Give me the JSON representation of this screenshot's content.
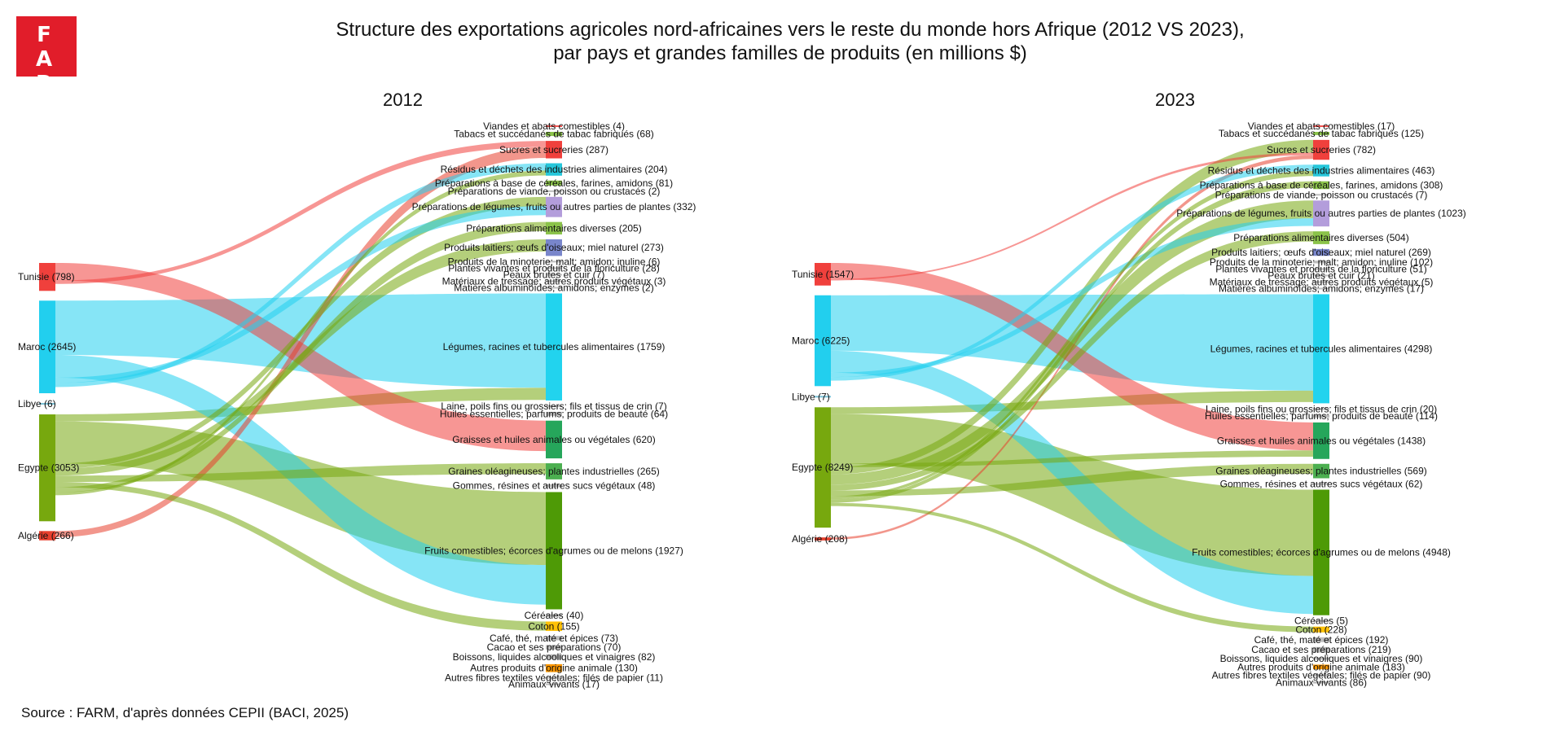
{
  "logo": {
    "line1": "F A",
    "line2": "R M"
  },
  "title": {
    "line1": "Structure des exportations agricoles nord-africaines vers le reste du monde hors Afrique (2012 VS 2023),",
    "line2": "par pays et grandes familles de produits (en millions $)"
  },
  "source": "Source : FARM, d'après données CEPII (BACI, 2025)",
  "colors": {
    "Tunisie": "#f0403c",
    "Maroc": "#22cfee",
    "Libye": "#7ac0d6",
    "Egypte": "#77a80e",
    "Algérie": "#e8402e"
  },
  "chart_data": [
    {
      "type": "sankey",
      "title": "2012",
      "sources": [
        {
          "name": "Tunisie",
          "value": 798,
          "label": "Tunisie (798)"
        },
        {
          "name": "Maroc",
          "value": 2645,
          "label": "Maroc (2645)"
        },
        {
          "name": "Libye",
          "value": 6,
          "label": "Libye (6)"
        },
        {
          "name": "Egypte",
          "value": 3053,
          "label": "Egypte (3053)"
        },
        {
          "name": "Algérie",
          "value": 266,
          "label": "Algérie (266)"
        }
      ],
      "targets": [
        {
          "name": "Viandes et abats comestibles",
          "value": 4,
          "label": "Viandes et abats comestibles (4)",
          "color": "#ef5350"
        },
        {
          "name": "Tabacs et succédanés de tabac fabriqués",
          "value": 68,
          "label": "Tabacs et succédanés de tabac fabriqués (68)",
          "color": "#8bc34a"
        },
        {
          "name": "Sucres et sucreries",
          "value": 287,
          "label": "Sucres et sucreries (287)",
          "color": "#f0403c"
        },
        {
          "name": "Résidus et déchets des industries alimentaires",
          "value": 204,
          "label": "Résidus et déchets des industries alimentaires (204)",
          "color": "#26c6da"
        },
        {
          "name": "Préparations à base de céréales, farines, amidons",
          "value": 81,
          "label": "Préparations à base de céréales, farines, amidons (81)",
          "color": "#8bc34a"
        },
        {
          "name": "Préparations de viande, poisson ou crustacés",
          "value": 2,
          "label": "Préparations de viande, poisson ou crustacés (2)",
          "color": "#bdbdbd"
        },
        {
          "name": "Préparations de légumes, fruits ou autres parties de plantes",
          "value": 332,
          "label": "Préparations de légumes, fruits ou autres parties de plantes (332)",
          "color": "#b39ddb"
        },
        {
          "name": "Préparations alimentaires diverses",
          "value": 205,
          "label": "Préparations alimentaires diverses (205)",
          "color": "#8bc34a"
        },
        {
          "name": "Produits laitiers; œufs d'oiseaux; miel naturel",
          "value": 273,
          "label": "Produits laitiers; œufs d'oiseaux; miel naturel (273)",
          "color": "#7986cb"
        },
        {
          "name": "Produits de la minoterie; malt; amidon; inuline",
          "value": 6,
          "label": "Produits de la minoterie; malt; amidon; inuline (6)",
          "color": "#bdbdbd"
        },
        {
          "name": "Plantes vivantes et produits de la floriculture",
          "value": 28,
          "label": "Plantes vivantes et produits de la floriculture (28)",
          "color": "#bdbdbd"
        },
        {
          "name": "Peaux brutes et cuir",
          "value": 7,
          "label": "Peaux brutes et cuir (7)",
          "color": "#bdbdbd"
        },
        {
          "name": "Matériaux de tressage; autres produits végétaux",
          "value": 3,
          "label": "Matériaux de tressage; autres produits végétaux (3)",
          "color": "#bdbdbd"
        },
        {
          "name": "Matières albuminoïdes; amidons; enzymes",
          "value": 2,
          "label": "Matières albuminoïdes; amidons; enzymes (2)",
          "color": "#bdbdbd"
        },
        {
          "name": "Légumes, racines et tubercules alimentaires",
          "value": 1759,
          "label": "Légumes, racines et tubercules alimentaires (1759)",
          "color": "#22d3ee"
        },
        {
          "name": "Laine, poils fins ou grossiers; fils et tissus de crin",
          "value": 7,
          "label": "Laine, poils fins ou grossiers; fils et tissus de crin (7)",
          "color": "#bdbdbd"
        },
        {
          "name": "Huiles essentielles; parfums; produits de beauté",
          "value": 64,
          "label": "Huiles essentielles; parfums; produits de beauté (64)",
          "color": "#bdbdbd"
        },
        {
          "name": "Graisses et huiles animales ou végétales",
          "value": 620,
          "label": "Graisses et huiles animales ou végétales (620)",
          "color": "#26a65b"
        },
        {
          "name": "Graines oléagineuses; plantes industrielles",
          "value": 265,
          "label": "Graines oléagineuses; plantes industrielles (265)",
          "color": "#4caf50"
        },
        {
          "name": "Gommes, résines et autres sucs végétaux",
          "value": 48,
          "label": "Gommes, résines et autres sucs végétaux (48)",
          "color": "#bdbdbd"
        },
        {
          "name": "Fruits comestibles; écorces d'agrumes ou de melons",
          "value": 1927,
          "label": "Fruits comestibles; écorces d'agrumes ou de melons (1927)",
          "color": "#4e9a06"
        },
        {
          "name": "Céréales",
          "value": 40,
          "label": "Céréales (40)",
          "color": "#bdbdbd"
        },
        {
          "name": "Coton",
          "value": 155,
          "label": "Coton (155)",
          "color": "#ffc107"
        },
        {
          "name": "Café, thé, maté et épices",
          "value": 73,
          "label": "Café, thé, maté et épices (73)",
          "color": "#bdbdbd"
        },
        {
          "name": "Cacao et ses préparations",
          "value": 70,
          "label": "Cacao et ses préparations (70)",
          "color": "#bdbdbd"
        },
        {
          "name": "Boissons, liquides alcooliques et vinaigres",
          "value": 82,
          "label": "Boissons, liquides alcooliques et vinaigres (82)",
          "color": "#bdbdbd"
        },
        {
          "name": "Autres produits d'origine animale",
          "value": 130,
          "label": "Autres produits d'origine animale (130)",
          "color": "#ff9800"
        },
        {
          "name": "Autres fibres textiles végétales; filés de papier",
          "value": 11,
          "label": "Autres fibres textiles végétales; filés de papier (11)",
          "color": "#bdbdbd"
        },
        {
          "name": "Animaux vivants",
          "value": 17,
          "label": "Animaux vivants (17)",
          "color": "#bdbdbd"
        }
      ],
      "links": [
        {
          "source": "Maroc",
          "target": "Légumes, racines et tubercules alimentaires",
          "value": 1550
        },
        {
          "source": "Egypte",
          "target": "Légumes, racines et tubercules alimentaires",
          "value": 200
        },
        {
          "source": "Egypte",
          "target": "Fruits comestibles; écorces d'agrumes ou de melons",
          "value": 1200
        },
        {
          "source": "Maroc",
          "target": "Fruits comestibles; écorces d'agrumes ou de melons",
          "value": 650
        },
        {
          "source": "Tunisie",
          "target": "Graisses et huiles animales ou végétales",
          "value": 500
        },
        {
          "source": "Tunisie",
          "target": "Sucres et sucreries",
          "value": 100
        },
        {
          "source": "Algérie",
          "target": "Sucres et sucreries",
          "value": 180
        },
        {
          "source": "Egypte",
          "target": "Préparations de légumes, fruits ou autres parties de plantes",
          "value": 150
        },
        {
          "source": "Maroc",
          "target": "Préparations de légumes, fruits ou autres parties de plantes",
          "value": 150
        },
        {
          "source": "Egypte",
          "target": "Produits laitiers; œufs d'oiseaux; miel naturel",
          "value": 200
        },
        {
          "source": "Egypte",
          "target": "Graines oléagineuses; plantes industrielles",
          "value": 180
        },
        {
          "source": "Egypte",
          "target": "Coton",
          "value": 150
        },
        {
          "source": "Egypte",
          "target": "Préparations alimentaires diverses",
          "value": 150
        },
        {
          "source": "Maroc",
          "target": "Résidus et déchets des industries alimentaires",
          "value": 120
        },
        {
          "source": "Egypte",
          "target": "Résidus et déchets des industries alimentaires",
          "value": 80
        }
      ]
    },
    {
      "type": "sankey",
      "title": "2023",
      "sources": [
        {
          "name": "Tunisie",
          "value": 1547,
          "label": "Tunisie (1547)"
        },
        {
          "name": "Maroc",
          "value": 6225,
          "label": "Maroc (6225)"
        },
        {
          "name": "Libye",
          "value": 7,
          "label": "Libye (7)"
        },
        {
          "name": "Egypte",
          "value": 8249,
          "label": "Egypte (8249)"
        },
        {
          "name": "Algérie",
          "value": 208,
          "label": "Algérie (208)"
        }
      ],
      "targets": [
        {
          "name": "Viandes et abats comestibles",
          "value": 17,
          "label": "Viandes et abats comestibles (17)",
          "color": "#ef5350"
        },
        {
          "name": "Tabacs et succédanés de tabac fabriqués",
          "value": 125,
          "label": "Tabacs et succédanés de tabac fabriqués (125)",
          "color": "#8bc34a"
        },
        {
          "name": "Sucres et sucreries",
          "value": 782,
          "label": "Sucres et sucreries (782)",
          "color": "#f0403c"
        },
        {
          "name": "Résidus et déchets des industries alimentaires",
          "value": 463,
          "label": "Résidus et déchets des industries alimentaires (463)",
          "color": "#26c6da"
        },
        {
          "name": "Préparations à base de céréales, farines, amidons",
          "value": 308,
          "label": "Préparations à base de céréales, farines, amidons (308)",
          "color": "#8bc34a"
        },
        {
          "name": "Préparations de viande, poisson ou crustacés",
          "value": 7,
          "label": "Préparations de viande, poisson ou crustacés (7)",
          "color": "#bdbdbd"
        },
        {
          "name": "Préparations de légumes, fruits ou autres parties de plantes",
          "value": 1023,
          "label": "Préparations de légumes, fruits ou autres parties de plantes (1023)",
          "color": "#b39ddb"
        },
        {
          "name": "Préparations alimentaires diverses",
          "value": 504,
          "label": "Préparations alimentaires diverses (504)",
          "color": "#8bc34a"
        },
        {
          "name": "Produits laitiers; œufs d'oiseaux; miel naturel",
          "value": 269,
          "label": "Produits laitiers; œufs d'oiseaux; miel naturel (269)",
          "color": "#7986cb"
        },
        {
          "name": "Produits de la minoterie; malt; amidon; inuline",
          "value": 102,
          "label": "Produits de la minoterie; malt; amidon; inuline (102)",
          "color": "#bdbdbd"
        },
        {
          "name": "Plantes vivantes et produits de la floriculture",
          "value": 51,
          "label": "Plantes vivantes et produits de la floriculture (51)",
          "color": "#bdbdbd"
        },
        {
          "name": "Peaux brutes et cuir",
          "value": 21,
          "label": "Peaux brutes et cuir (21)",
          "color": "#bdbdbd"
        },
        {
          "name": "Matériaux de tressage; autres produits végétaux",
          "value": 5,
          "label": "Matériaux de tressage; autres produits végétaux (5)",
          "color": "#bdbdbd"
        },
        {
          "name": "Matières albuminoïdes; amidons; enzymes",
          "value": 17,
          "label": "Matières albuminoïdes; amidons; enzymes (17)",
          "color": "#bdbdbd"
        },
        {
          "name": "Légumes, racines et tubercules alimentaires",
          "value": 4298,
          "label": "Légumes, racines et tubercules alimentaires (4298)",
          "color": "#22d3ee"
        },
        {
          "name": "Laine, poils fins ou grossiers; fils et tissus de crin",
          "value": 20,
          "label": "Laine, poils fins ou grossiers; fils et tissus de crin (20)",
          "color": "#bdbdbd"
        },
        {
          "name": "Huiles essentielles; parfums; produits de beauté",
          "value": 114,
          "label": "Huiles essentielles; parfums; produits de beauté (114)",
          "color": "#bdbdbd"
        },
        {
          "name": "Graisses et huiles animales ou végétales",
          "value": 1438,
          "label": "Graisses et huiles animales ou végétales (1438)",
          "color": "#26a65b"
        },
        {
          "name": "Graines oléagineuses; plantes industrielles",
          "value": 569,
          "label": "Graines oléagineuses; plantes industrielles (569)",
          "color": "#4caf50"
        },
        {
          "name": "Gommes, résines et autres sucs végétaux",
          "value": 62,
          "label": "Gommes, résines et autres sucs végétaux (62)",
          "color": "#bdbdbd"
        },
        {
          "name": "Fruits comestibles; écorces d'agrumes ou de melons",
          "value": 4948,
          "label": "Fruits comestibles; écorces d'agrumes ou de melons (4948)",
          "color": "#4e9a06"
        },
        {
          "name": "Céréales",
          "value": 5,
          "label": "Céréales (5)",
          "color": "#bdbdbd"
        },
        {
          "name": "Coton",
          "value": 228,
          "label": "Coton (228)",
          "color": "#ffc107"
        },
        {
          "name": "Café, thé, maté et épices",
          "value": 192,
          "label": "Café, thé, maté et épices (192)",
          "color": "#bdbdbd"
        },
        {
          "name": "Cacao et ses préparations",
          "value": 219,
          "label": "Cacao et ses préparations (219)",
          "color": "#bdbdbd"
        },
        {
          "name": "Boissons, liquides alcooliques et vinaigres",
          "value": 90,
          "label": "Boissons, liquides alcooliques et vinaigres (90)",
          "color": "#bdbdbd"
        },
        {
          "name": "Autres produits d'origine animale",
          "value": 183,
          "label": "Autres produits d'origine animale (183)",
          "color": "#ff9800"
        },
        {
          "name": "Autres fibres textiles végétales; filés de papier",
          "value": 90,
          "label": "Autres fibres textiles végétales; filés de papier (90)",
          "color": "#bdbdbd"
        },
        {
          "name": "Animaux vivants",
          "value": 86,
          "label": "Animaux vivants (86)",
          "color": "#bdbdbd"
        }
      ],
      "links": [
        {
          "source": "Maroc",
          "target": "Légumes, racines et tubercules alimentaires",
          "value": 3800
        },
        {
          "source": "Egypte",
          "target": "Légumes, racines et tubercules alimentaires",
          "value": 450
        },
        {
          "source": "Egypte",
          "target": "Fruits comestibles; écorces d'agrumes ou de melons",
          "value": 3400
        },
        {
          "source": "Maroc",
          "target": "Fruits comestibles; écorces d'agrumes ou de melons",
          "value": 1500
        },
        {
          "source": "Tunisie",
          "target": "Graisses et huiles animales ou végétales",
          "value": 1100
        },
        {
          "source": "Egypte",
          "target": "Graisses et huiles animales ou végétales",
          "value": 250
        },
        {
          "source": "Egypte",
          "target": "Sucres et sucreries",
          "value": 500
        },
        {
          "source": "Tunisie",
          "target": "Sucres et sucreries",
          "value": 100
        },
        {
          "source": "Algérie",
          "target": "Sucres et sucreries",
          "value": 150
        },
        {
          "source": "Egypte",
          "target": "Préparations de légumes, fruits ou autres parties de plantes",
          "value": 700
        },
        {
          "source": "Maroc",
          "target": "Préparations de légumes, fruits ou autres parties de plantes",
          "value": 300
        },
        {
          "source": "Egypte",
          "target": "Préparations alimentaires diverses",
          "value": 400
        },
        {
          "source": "Egypte",
          "target": "Graines oléagineuses; plantes industrielles",
          "value": 400
        },
        {
          "source": "Maroc",
          "target": "Résidus et déchets des industries alimentaires",
          "value": 250
        },
        {
          "source": "Egypte",
          "target": "Résidus et déchets des industries alimentaires",
          "value": 200
        },
        {
          "source": "Egypte",
          "target": "Préparations à base de céréales, farines, amidons",
          "value": 250
        },
        {
          "source": "Egypte",
          "target": "Coton",
          "value": 220
        }
      ]
    }
  ]
}
